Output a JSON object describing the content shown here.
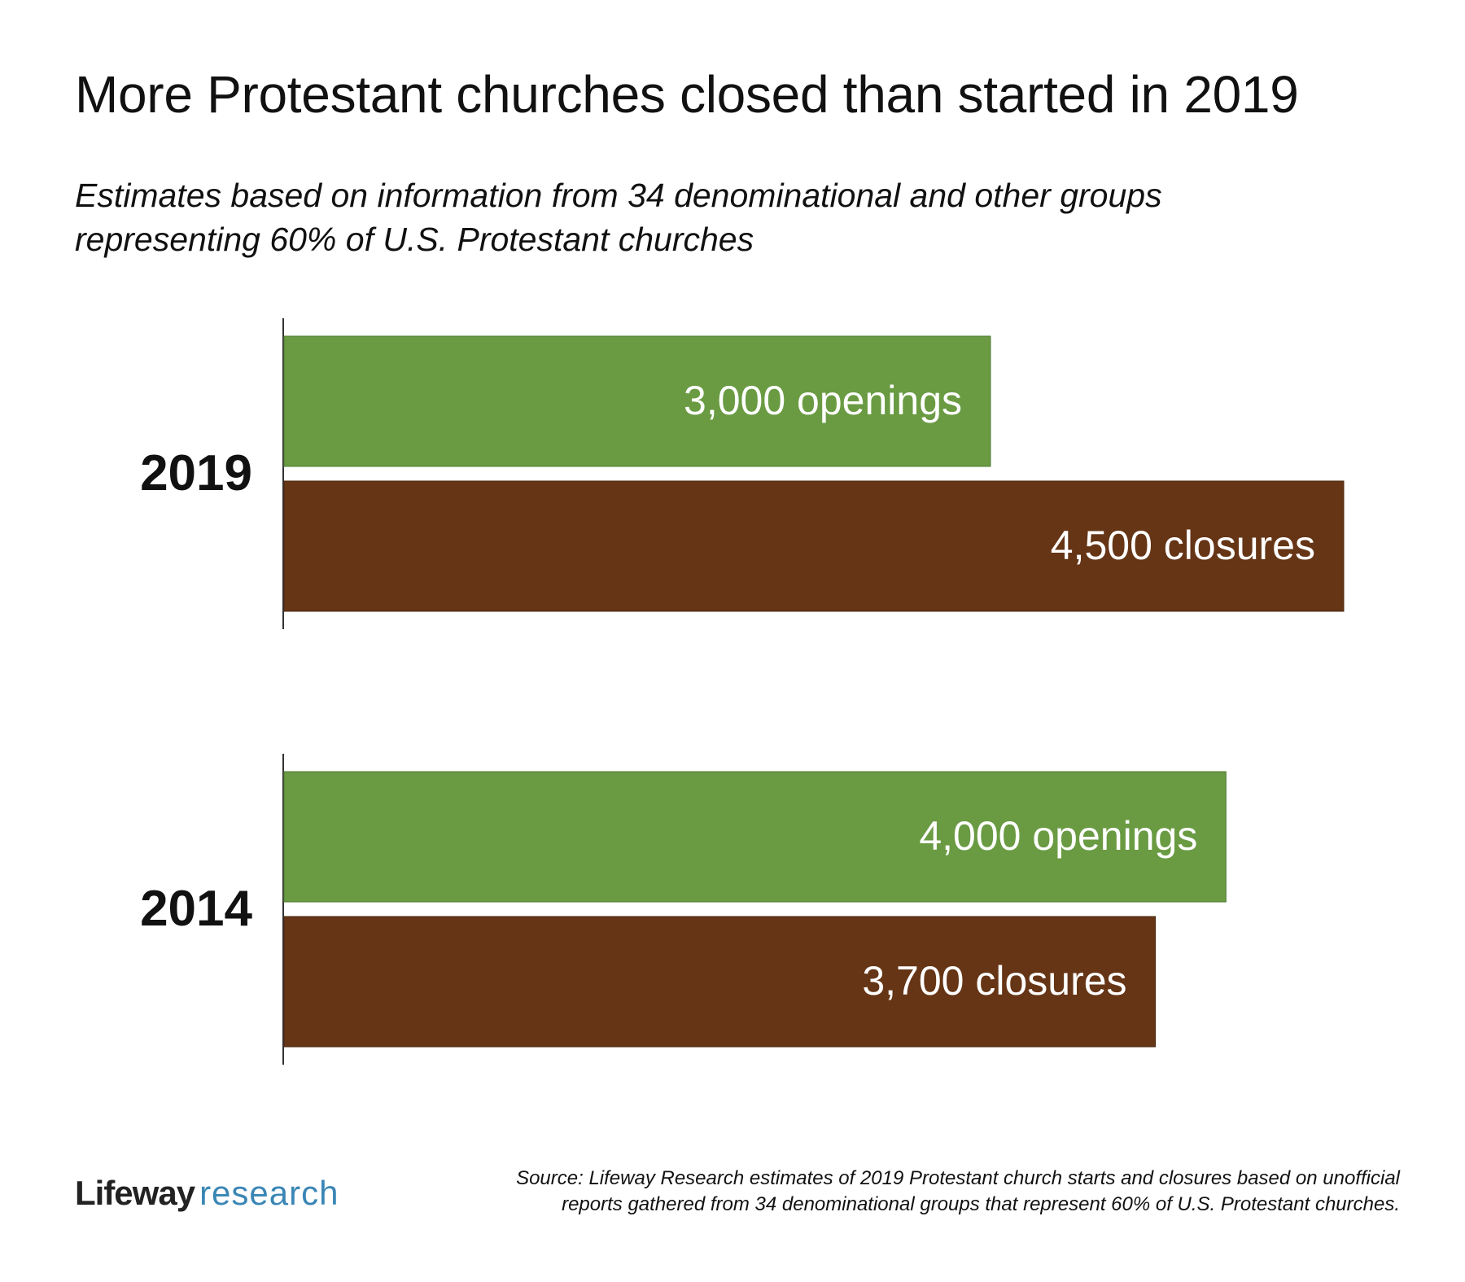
{
  "header": {
    "title": "More Protestant churches closed than started in 2019",
    "subtitle_line1": "Estimates based on information from 34 denominational and other groups",
    "subtitle_line2": "representing 60% of U.S. Protestant churches"
  },
  "chart_data": {
    "type": "bar",
    "orientation": "horizontal",
    "title": "More Protestant churches closed than started in 2019",
    "subtitle": "Estimates based on information from 34 denominational and other groups representing 60% of U.S. Protestant churches",
    "categories": [
      "2019",
      "2014"
    ],
    "series": [
      {
        "name": "openings",
        "color": "#6a9b43",
        "values": [
          3000,
          4000
        ],
        "labels": [
          "3,000 openings",
          "4,000 openings"
        ]
      },
      {
        "name": "closures",
        "color": "#653516",
        "values": [
          4500,
          3700
        ],
        "labels": [
          "4,500 closures",
          "3,700 closures"
        ]
      }
    ],
    "xlim": [
      0,
      4500
    ],
    "grid": false,
    "legend": "none"
  },
  "footer": {
    "brand": "Lifeway",
    "brand_sub": "research",
    "brand_color": "#3a86b5",
    "source_line1": "Source: Lifeway Research estimates of 2019 Protestant church starts and closures based on unofficial",
    "source_line2": "reports gathered from 34 denominational groups that represent 60% of U.S. Protestant churches."
  }
}
